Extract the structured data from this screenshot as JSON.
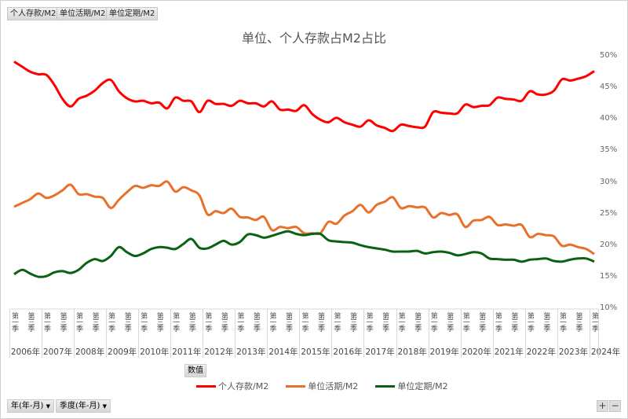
{
  "field_buttons": [
    "个人存款/M2",
    "单位活期/M2",
    "单位定期/M2"
  ],
  "values_button": "数值",
  "filter_buttons": [
    "年(年-月)",
    "季度(年-月)"
  ],
  "dropdown_icon": "▼",
  "zoom_buttons": {
    "plus": "+",
    "minus": "−"
  },
  "chart_data": {
    "type": "line",
    "title": "单位、个人存款占M2占比",
    "years": [
      "2006年",
      "2007年",
      "2008年",
      "2009年",
      "2010年",
      "2011年",
      "2012年",
      "2013年",
      "2014年",
      "2015年",
      "2016年",
      "2017年",
      "2018年",
      "2019年",
      "2020年",
      "2021年",
      "2022年",
      "2023年",
      "2024年"
    ],
    "quarter_tick_labels": [
      "第一季",
      "第三季"
    ],
    "y_ticks": [
      "50%",
      "45%",
      "40%",
      "35%",
      "30%",
      "25%",
      "20%",
      "15%",
      "10%"
    ],
    "ylim": [
      10,
      50
    ],
    "y_axis_position": "right",
    "legend_position": "bottom",
    "grid": false,
    "series": [
      {
        "name": "个人存款/M2",
        "color": "#ff0000",
        "values": [
          49.2,
          48.4,
          47.6,
          47.2,
          47.1,
          45.5,
          43.3,
          42.1,
          43.3,
          43.8,
          44.6,
          45.8,
          46.3,
          44.5,
          43.4,
          42.9,
          43.0,
          42.6,
          42.7,
          41.8,
          43.5,
          43.0,
          42.9,
          41.2,
          43.0,
          42.5,
          42.5,
          42.2,
          43.0,
          42.6,
          42.6,
          42.1,
          42.9,
          41.6,
          41.6,
          41.4,
          42.3,
          40.9,
          40.0,
          39.6,
          40.3,
          39.6,
          39.2,
          38.9,
          39.9,
          39.1,
          38.7,
          38.2,
          39.2,
          39.0,
          38.8,
          38.9,
          41.2,
          41.1,
          41.0,
          41.0,
          42.4,
          42.0,
          42.2,
          42.3,
          43.5,
          43.3,
          43.2,
          43.0,
          44.5,
          44.0,
          44.0,
          44.6,
          46.4,
          46.2,
          46.5,
          46.9,
          47.7
        ]
      },
      {
        "name": "单位活期/M2",
        "color": "#e8702a",
        "values": [
          26.2,
          26.8,
          27.4,
          28.3,
          27.6,
          28.0,
          28.8,
          29.7,
          28.2,
          28.2,
          27.8,
          27.6,
          26.0,
          27.3,
          28.5,
          29.5,
          29.2,
          29.6,
          29.5,
          30.2,
          28.6,
          29.3,
          28.8,
          28.0,
          25.0,
          25.5,
          25.2,
          25.9,
          24.6,
          24.5,
          24.1,
          24.6,
          22.5,
          23.0,
          22.8,
          23.0,
          22.0,
          22.0,
          22.0,
          23.8,
          23.5,
          24.8,
          25.5,
          26.5,
          25.3,
          26.5,
          27.0,
          27.7,
          26.0,
          26.3,
          26.1,
          26.1,
          24.5,
          25.2,
          24.9,
          25.0,
          23.0,
          24.0,
          24.1,
          24.6,
          23.3,
          23.4,
          23.2,
          23.3,
          21.4,
          21.9,
          21.7,
          21.5,
          20.0,
          20.2,
          19.8,
          19.5,
          18.7
        ]
      },
      {
        "name": "单位定期/M2",
        "color": "#0b6112",
        "values": [
          15.5,
          16.2,
          15.6,
          15.1,
          15.2,
          15.8,
          16.0,
          15.7,
          16.2,
          17.3,
          17.9,
          17.6,
          18.4,
          19.8,
          19.0,
          18.4,
          18.8,
          19.5,
          19.8,
          19.7,
          19.5,
          20.3,
          21.1,
          19.7,
          19.6,
          20.2,
          20.8,
          20.2,
          20.6,
          21.8,
          21.7,
          21.3,
          21.6,
          22.0,
          22.3,
          21.9,
          21.7,
          21.9,
          21.9,
          20.9,
          20.7,
          20.6,
          20.5,
          20.1,
          19.8,
          19.6,
          19.4,
          19.1,
          19.1,
          19.1,
          19.2,
          18.8,
          19.0,
          19.1,
          18.9,
          18.5,
          18.7,
          19.0,
          18.8,
          18.0,
          17.9,
          17.8,
          17.8,
          17.5,
          17.8,
          17.9,
          18.0,
          17.6,
          17.5,
          17.8,
          18.0,
          18.0,
          17.5
        ]
      }
    ]
  }
}
